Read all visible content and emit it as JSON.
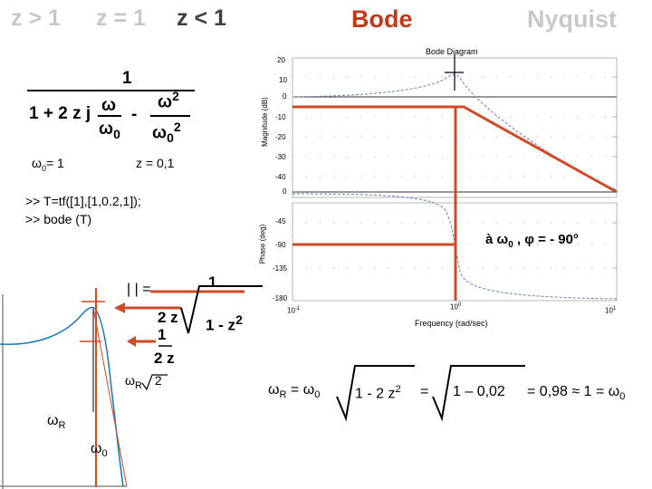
{
  "header": {
    "z_gt_1": "z > 1",
    "z_eq_1": "z = 1",
    "z_lt_1": "z < 1",
    "bode": "Bode",
    "nyquist": "Nyquist"
  },
  "transfer_function": {
    "numerator": "1",
    "denominator_prefix": "1 + 2 z j",
    "omega": "ω",
    "omega0": "ω",
    "omega0_sub": "0",
    "minus": "-",
    "omega_sq": "ω",
    "sq": "2",
    "omega0_sq_base": "ω",
    "omega0_sq_sub": "0",
    "omega0_sq_sup": "2"
  },
  "params": {
    "omega0_label": "ω",
    "omega0_sub": "0",
    "omega0_val": "= 1",
    "z_val": "z = 0,1"
  },
  "code": {
    "line1": ">> T=tf([1],[1,0.2,1]);",
    "line2": ">> bode (T)"
  },
  "phase_note": {
    "prefix": "à ω",
    "sub": "0",
    "suffix": " , φ = - 90°"
  },
  "magnitude_formula": {
    "abs": "| | =",
    "num": "1",
    "den_left": "2 z",
    "den_right": "1 - z",
    "den_sup": "2"
  },
  "peak_labels": {
    "one": "1",
    "two_z": "2 z",
    "omega_r": "ω",
    "r_sub": "R",
    "sqrt2": "2"
  },
  "resonance": {
    "lhs": "ω",
    "lhs_sub": "R",
    "eq1": "=",
    "omega0": "ω",
    "omega0_sub": "0",
    "rad1": "1 - 2 z",
    "rad1_sup": "2",
    "eq2": "=",
    "rad2": "1 – 0,02",
    "tail": "= 0,98 ≈ 1 =",
    "final": "ω",
    "final_sub": "0"
  },
  "bode_plot": {
    "title": "Bode Diagram",
    "mag_ylabel": "Magnitude (dB)",
    "phase_ylabel": "Phase (deg)",
    "xlabel": "Frequency (rad/sec)",
    "mag_ticks": [
      "20",
      "10",
      "0",
      "-10",
      "-20",
      "-30",
      "-40"
    ],
    "phase_ticks": [
      "0",
      "-45",
      "-90",
      "-135",
      "-180"
    ],
    "x_ticks": [
      {
        "base": "10",
        "exp": "-1"
      },
      {
        "base": "10",
        "exp": "0"
      },
      {
        "base": "10",
        "exp": "1"
      }
    ]
  },
  "nyq_sketch": {
    "omega_r": "ω",
    "r_sub": "R",
    "omega0": "ω",
    "omega0_sub": "0"
  },
  "colors": {
    "accent": "#d04a26",
    "curve": "#1b78b4",
    "dashed": "#6b7fb5"
  }
}
